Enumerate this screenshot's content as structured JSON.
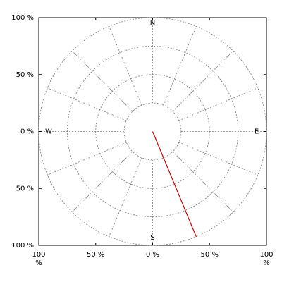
{
  "chart_data": {
    "type": "compass",
    "xlim": [
      -100,
      100
    ],
    "ylim": [
      -100,
      100
    ],
    "xticks": [
      {
        "value": -100,
        "label": "100 %"
      },
      {
        "value": -50,
        "label": "50 %"
      },
      {
        "value": 0,
        "label": "0 %"
      },
      {
        "value": 50,
        "label": "50 %"
      },
      {
        "value": 100,
        "label": "100 %"
      }
    ],
    "yticks": [
      {
        "value": 100,
        "label": "100 %"
      },
      {
        "value": 50,
        "label": "50 %"
      },
      {
        "value": 0,
        "label": "0 %"
      },
      {
        "value": -50,
        "label": "50 %"
      },
      {
        "value": -100,
        "label": "100 %"
      }
    ],
    "rings": [
      25,
      50,
      75,
      100
    ],
    "directions": {
      "N": "N",
      "E": "E",
      "S": "S",
      "W": "W"
    },
    "vector": {
      "direction": 157.5,
      "magnitude": 100,
      "color": "#cc0000"
    },
    "grid": true
  }
}
